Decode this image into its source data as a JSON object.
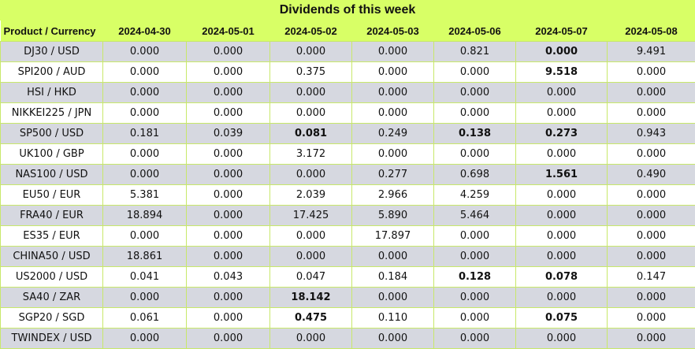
{
  "title": "Dividends of this week",
  "columns": [
    "Product / Currency",
    "2024-04-30",
    "2024-05-01",
    "2024-05-02",
    "2024-05-03",
    "2024-05-06",
    "2024-05-07",
    "2024-05-08"
  ],
  "rows": [
    {
      "product": "DJ30 / USD",
      "values": [
        "0.000",
        "0.000",
        "0.000",
        "0.000",
        "0.821",
        "0.000",
        "9.491"
      ],
      "bold": [
        false,
        false,
        false,
        false,
        false,
        true,
        false
      ]
    },
    {
      "product": "SPI200 / AUD",
      "values": [
        "0.000",
        "0.000",
        "0.375",
        "0.000",
        "0.000",
        "9.518",
        "0.000"
      ],
      "bold": [
        false,
        false,
        false,
        false,
        false,
        true,
        false
      ]
    },
    {
      "product": "HSI / HKD",
      "values": [
        "0.000",
        "0.000",
        "0.000",
        "0.000",
        "0.000",
        "0.000",
        "0.000"
      ],
      "bold": [
        false,
        false,
        false,
        false,
        false,
        false,
        false
      ]
    },
    {
      "product": "NIKKEI225 / JPN",
      "values": [
        "0.000",
        "0.000",
        "0.000",
        "0.000",
        "0.000",
        "0.000",
        "0.000"
      ],
      "bold": [
        false,
        false,
        false,
        false,
        false,
        false,
        false
      ]
    },
    {
      "product": "SP500 / USD",
      "values": [
        "0.181",
        "0.039",
        "0.081",
        "0.249",
        "0.138",
        "0.273",
        "0.943"
      ],
      "bold": [
        false,
        false,
        true,
        false,
        true,
        true,
        false
      ]
    },
    {
      "product": "UK100 / GBP",
      "values": [
        "0.000",
        "0.000",
        "3.172",
        "0.000",
        "0.000",
        "0.000",
        "0.000"
      ],
      "bold": [
        false,
        false,
        false,
        false,
        false,
        false,
        false
      ]
    },
    {
      "product": "NAS100 / USD",
      "values": [
        "0.000",
        "0.000",
        "0.000",
        "0.277",
        "0.698",
        "1.561",
        "0.490"
      ],
      "bold": [
        false,
        false,
        false,
        false,
        false,
        true,
        false
      ]
    },
    {
      "product": "EU50 / EUR",
      "values": [
        "5.381",
        "0.000",
        "2.039",
        "2.966",
        "4.259",
        "0.000",
        "0.000"
      ],
      "bold": [
        false,
        false,
        false,
        false,
        false,
        false,
        false
      ]
    },
    {
      "product": "FRA40 / EUR",
      "values": [
        "18.894",
        "0.000",
        "17.425",
        "5.890",
        "5.464",
        "0.000",
        "0.000"
      ],
      "bold": [
        false,
        false,
        false,
        false,
        false,
        false,
        false
      ]
    },
    {
      "product": "ES35 / EUR",
      "values": [
        "0.000",
        "0.000",
        "0.000",
        "17.897",
        "0.000",
        "0.000",
        "0.000"
      ],
      "bold": [
        false,
        false,
        false,
        false,
        false,
        false,
        false
      ]
    },
    {
      "product": "CHINA50 / USD",
      "values": [
        "18.861",
        "0.000",
        "0.000",
        "0.000",
        "0.000",
        "0.000",
        "0.000"
      ],
      "bold": [
        false,
        false,
        false,
        false,
        false,
        false,
        false
      ]
    },
    {
      "product": "US2000 / USD",
      "values": [
        "0.041",
        "0.043",
        "0.047",
        "0.184",
        "0.128",
        "0.078",
        "0.147"
      ],
      "bold": [
        false,
        false,
        false,
        false,
        true,
        true,
        false
      ]
    },
    {
      "product": "SA40 / ZAR",
      "values": [
        "0.000",
        "0.000",
        "18.142",
        "0.000",
        "0.000",
        "0.000",
        "0.000"
      ],
      "bold": [
        false,
        false,
        true,
        false,
        false,
        false,
        false
      ]
    },
    {
      "product": "SGP20 / SGD",
      "values": [
        "0.061",
        "0.000",
        "0.475",
        "0.110",
        "0.000",
        "0.075",
        "0.000"
      ],
      "bold": [
        false,
        false,
        true,
        false,
        false,
        true,
        false
      ]
    },
    {
      "product": "TWINDEX / USD",
      "values": [
        "0.000",
        "0.000",
        "0.000",
        "0.000",
        "0.000",
        "0.000",
        "0.000"
      ],
      "bold": [
        false,
        false,
        false,
        false,
        false,
        false,
        false
      ]
    }
  ]
}
